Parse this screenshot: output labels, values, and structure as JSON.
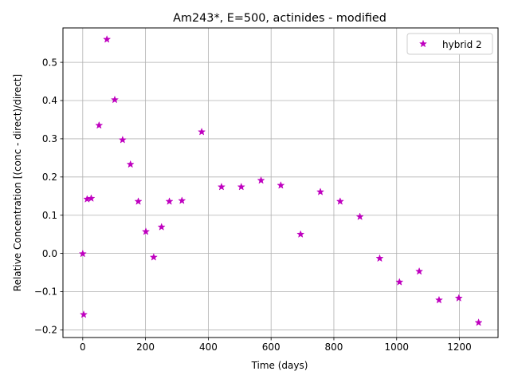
{
  "chart_data": {
    "type": "scatter",
    "title": "Am243*, E=500, actinides - modified",
    "xlabel": "Time (days)",
    "ylabel": "Relative Concentration [(conc - direct)/direct]",
    "xlim": [
      -63,
      1323
    ],
    "ylim": [
      -0.22,
      0.59
    ],
    "xticks": [
      0,
      200,
      400,
      600,
      800,
      1000,
      1200
    ],
    "yticks": [
      -0.2,
      -0.1,
      0.0,
      0.1,
      0.2,
      0.3,
      0.4,
      0.5
    ],
    "xtick_labels": [
      "0",
      "200",
      "400",
      "600",
      "800",
      "1000",
      "1200"
    ],
    "ytick_labels": [
      "−0.2",
      "−0.1",
      "0.0",
      "0.1",
      "0.2",
      "0.3",
      "0.4",
      "0.5"
    ],
    "grid": true,
    "legend_position": "top-right",
    "series": [
      {
        "name": "hybrid 2",
        "marker": "star",
        "color": "#bf00bf",
        "x": [
          0,
          3,
          14,
          27,
          52,
          77,
          102,
          127,
          152,
          177,
          201,
          226,
          251,
          276,
          316,
          379,
          442,
          505,
          568,
          631,
          694,
          757,
          820,
          883,
          946,
          1009,
          1072,
          1135,
          1198,
          1261
        ],
        "y": [
          -0.001,
          -0.16,
          0.142,
          0.144,
          0.335,
          0.56,
          0.402,
          0.297,
          0.233,
          0.136,
          0.057,
          -0.01,
          0.069,
          0.136,
          0.138,
          0.318,
          0.174,
          0.174,
          0.191,
          0.178,
          0.05,
          0.161,
          0.136,
          0.096,
          -0.013,
          -0.075,
          -0.047,
          -0.122,
          -0.117,
          -0.181
        ]
      }
    ]
  }
}
